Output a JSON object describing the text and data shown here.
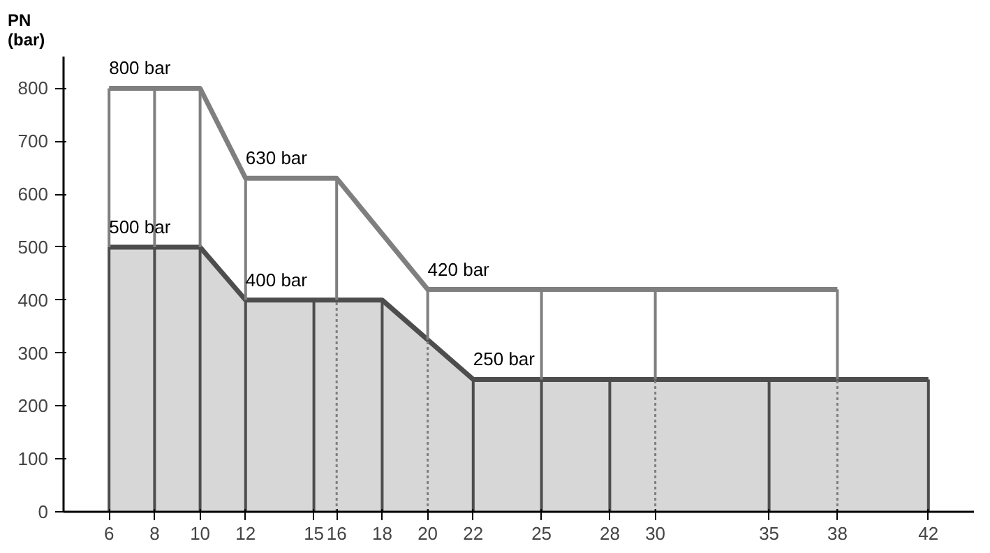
{
  "chart_data": {
    "type": "line",
    "ylabel": "PN\n(bar)",
    "xlim": [
      4,
      44
    ],
    "xticks": [
      6,
      8,
      10,
      12,
      15,
      16,
      18,
      20,
      22,
      25,
      28,
      30,
      35,
      38,
      42
    ],
    "ylim": [
      0,
      860
    ],
    "yticks": [
      0,
      100,
      200,
      300,
      400,
      500,
      600,
      700,
      800
    ],
    "grid": false,
    "series": [
      {
        "color": "#7f7f7f",
        "x": [
          6,
          8,
          10,
          12,
          16,
          20,
          25,
          30,
          38
        ],
        "values": [
          800,
          800,
          800,
          630,
          630,
          420,
          420,
          420,
          420
        ]
      },
      {
        "type": "area",
        "color": "#4d4d4d",
        "x": [
          6,
          8,
          10,
          12,
          15,
          18,
          22,
          25,
          28,
          35,
          42
        ],
        "values": [
          500,
          500,
          500,
          400,
          400,
          400,
          250,
          250,
          250,
          250,
          250
        ]
      },
      {
        "color": "#4d4d4d",
        "x": [
          6,
          6
        ],
        "values": [
          0,
          500
        ]
      },
      {
        "color": "#4d4d4d",
        "x": [
          8,
          8
        ],
        "values": [
          0,
          500
        ]
      },
      {
        "color": "#4d4d4d",
        "x": [
          10,
          10
        ],
        "values": [
          0,
          500
        ]
      },
      {
        "color": "#4d4d4d",
        "x": [
          12,
          12
        ],
        "values": [
          0,
          400
        ]
      },
      {
        "color": "#4d4d4d",
        "x": [
          15,
          15
        ],
        "values": [
          0,
          400
        ]
      },
      {
        "color": "#4d4d4d",
        "x": [
          18,
          18
        ],
        "values": [
          0,
          400
        ]
      },
      {
        "color": "#4d4d4d",
        "x": [
          22,
          22
        ],
        "values": [
          0,
          250
        ]
      },
      {
        "color": "#4d4d4d",
        "x": [
          25,
          25
        ],
        "values": [
          0,
          250
        ]
      },
      {
        "color": "#4d4d4d",
        "x": [
          28,
          28
        ],
        "values": [
          0,
          250
        ]
      },
      {
        "color": "#4d4d4d",
        "x": [
          35,
          35
        ],
        "values": [
          0,
          250
        ]
      },
      {
        "color": "#4d4d4d",
        "x": [
          42,
          42
        ],
        "values": [
          0,
          250
        ]
      },
      {
        "color": "#7f7f7f",
        "x": [
          6,
          6
        ],
        "values": [
          500,
          800
        ]
      },
      {
        "color": "#7f7f7f",
        "x": [
          8,
          8
        ],
        "values": [
          500,
          800
        ]
      },
      {
        "color": "#7f7f7f",
        "x": [
          10,
          10
        ],
        "values": [
          500,
          800
        ]
      },
      {
        "color": "#7f7f7f",
        "x": [
          12,
          12
        ],
        "values": [
          400,
          630
        ]
      },
      {
        "color": "#7f7f7f",
        "x": [
          16,
          16
        ],
        "values": [
          400,
          630
        ]
      },
      {
        "color": "#7f7f7f",
        "x": [
          20,
          20
        ],
        "values": [
          325,
          420
        ]
      },
      {
        "color": "#7f7f7f",
        "x": [
          25,
          25
        ],
        "values": [
          250,
          420
        ]
      },
      {
        "color": "#7f7f7f",
        "x": [
          30,
          30
        ],
        "values": [
          250,
          420
        ]
      },
      {
        "color": "#7f7f7f",
        "x": [
          38,
          38
        ],
        "values": [
          250,
          420
        ]
      },
      {
        "color": "#7f7f7f",
        "line_style": "dotted",
        "x": [
          16,
          16
        ],
        "values": [
          0,
          400
        ]
      },
      {
        "color": "#7f7f7f",
        "line_style": "dotted",
        "x": [
          20,
          20
        ],
        "values": [
          0,
          325
        ]
      },
      {
        "color": "#7f7f7f",
        "line_style": "dotted",
        "x": [
          30,
          30
        ],
        "values": [
          0,
          250
        ]
      },
      {
        "color": "#7f7f7f",
        "line_style": "dotted",
        "x": [
          38,
          38
        ],
        "values": [
          0,
          250
        ]
      }
    ],
    "annotations": [
      {
        "text": "800 bar",
        "x": 6,
        "y": 800
      },
      {
        "text": "500 bar",
        "x": 6,
        "y": 500
      },
      {
        "text": "630 bar",
        "x": 12,
        "y": 630
      },
      {
        "text": "400 bar",
        "x": 12,
        "y": 400
      },
      {
        "text": "420 bar",
        "x": 20,
        "y": 420
      },
      {
        "text": "250 bar",
        "x": 22,
        "y": 250
      }
    ]
  }
}
